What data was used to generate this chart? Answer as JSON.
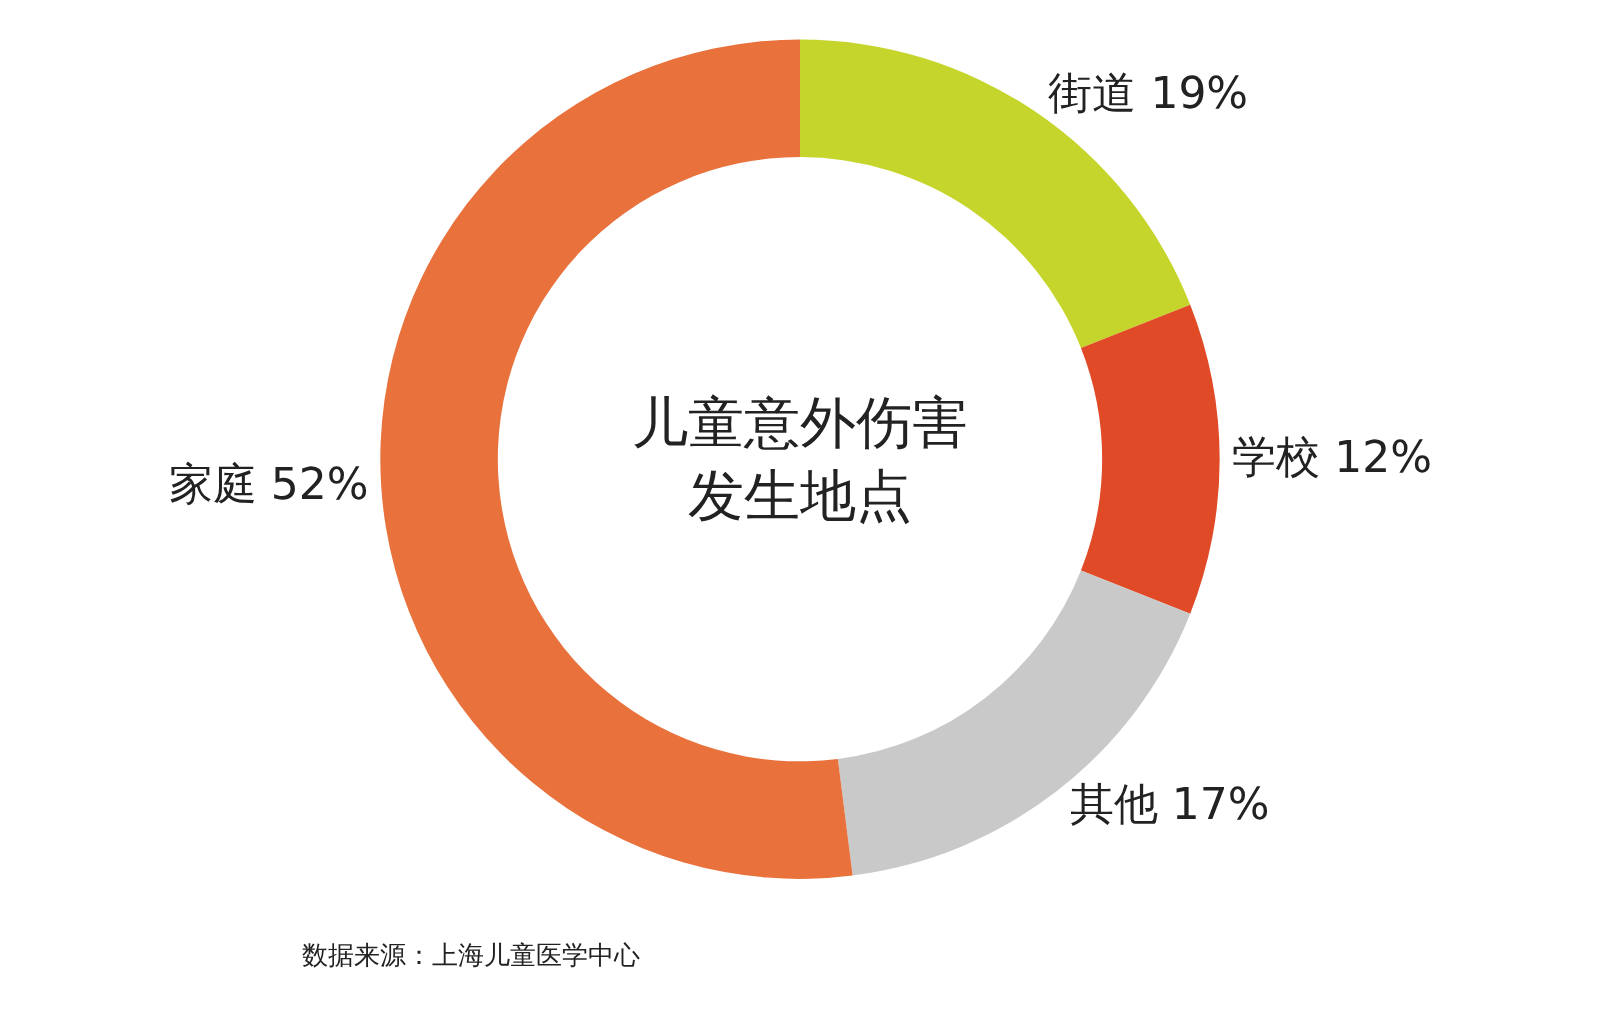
{
  "chart_data": {
    "type": "donut",
    "title": "儿童意外伤害发生地点",
    "categories": [
      "街道",
      "学校",
      "其他",
      "家庭"
    ],
    "values": [
      19,
      12,
      17,
      52
    ],
    "value_labels": [
      "19%",
      "12%",
      "17%",
      "52%"
    ],
    "colors": [
      "#c5d52b",
      "#e04a26",
      "#c9c9c9",
      "#e8713c"
    ],
    "annotations": [
      "数据来源：上海儿童医学中心"
    ]
  }
}
